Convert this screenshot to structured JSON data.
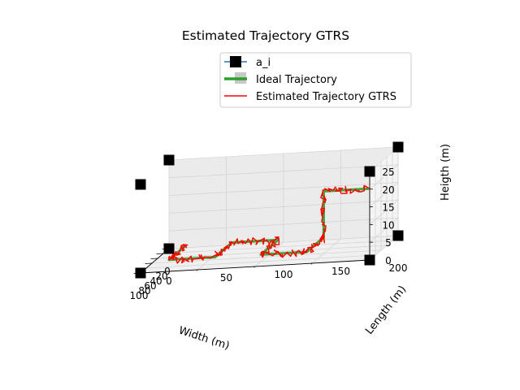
{
  "chart_data": {
    "type": "line3d",
    "title": "Estimated Trajectory GTRS",
    "xlabel": "Width (m)",
    "ylabel": "Length (m)",
    "zlabel": "Heigth (m)",
    "xlim": [
      0,
      100
    ],
    "ylim": [
      0,
      200
    ],
    "zlim": [
      0,
      25
    ],
    "x_ticks": [
      0,
      20,
      40,
      60,
      80,
      100
    ],
    "y_ticks": [
      0,
      50,
      100,
      150,
      200
    ],
    "z_ticks": [
      0,
      5,
      10,
      15,
      20,
      25
    ],
    "grid": true,
    "legend": {
      "placement": "top-right",
      "entries": [
        "a_i",
        "Ideal Trajectory",
        "Estimated Trajectory GTRS"
      ]
    },
    "colors": {
      "anchors": "#000000",
      "anchor_line": "#1f77b4",
      "ideal": "#2ca02c",
      "estimated": "#ff0000"
    },
    "anchors": [
      [
        0,
        0,
        0
      ],
      [
        100,
        0,
        0
      ],
      [
        0,
        200,
        0
      ],
      [
        100,
        200,
        0
      ],
      [
        0,
        0,
        25
      ],
      [
        100,
        0,
        25
      ],
      [
        0,
        200,
        25
      ],
      [
        100,
        200,
        25
      ]
    ],
    "ideal_trajectory": {
      "height": 2,
      "waypoints": [
        [
          20,
          20,
          2
        ],
        [
          80,
          20,
          2
        ],
        [
          80,
          60,
          2
        ],
        [
          20,
          60,
          2
        ],
        [
          20,
          100,
          2
        ],
        [
          80,
          100,
          2
        ],
        [
          80,
          140,
          2
        ],
        [
          20,
          140,
          2
        ],
        [
          20,
          140,
          15
        ],
        [
          20,
          180,
          15
        ]
      ]
    },
    "estimated_trajectory_note": ""
  }
}
